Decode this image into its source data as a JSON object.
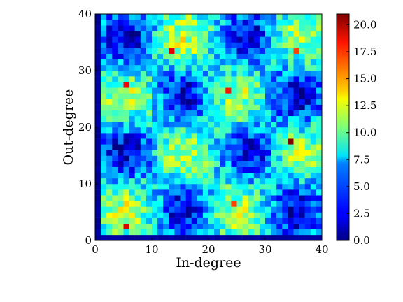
{
  "chart_data": {
    "type": "heatmap",
    "title": "",
    "xlabel": "In-degree",
    "ylabel": "Out-degree",
    "xlim": [
      0,
      40
    ],
    "ylim": [
      0,
      40
    ],
    "x_ticks": [
      "0",
      "10",
      "20",
      "30",
      "40"
    ],
    "y_ticks": [
      "0",
      "10",
      "20",
      "30",
      "40"
    ],
    "colormap": "jet",
    "colorbar": {
      "range": [
        0.0,
        21.0
      ],
      "ticks": [
        "0.0",
        "2.5",
        "5.0",
        "7.5",
        "10.0",
        "12.5",
        "15.0",
        "17.5",
        "20.0"
      ]
    },
    "grid": false,
    "description_of_cells": "40x40 grid of counts; low (blue, 0–4) blocks centered near (5,35),(27,35),(15,25),(35,25),(5,15),(27,15),(15,5),(35,5); higher (green–red, 8–21) blocks near (15,35),(35,35),(5,25),(25,25),(15,15),(35,15),(5,5),(25,5); column 0 and row 0 are ~0.",
    "highlights": [
      {
        "x": 34,
        "y": 17,
        "value": 21
      },
      {
        "x": 13,
        "y": 33,
        "value": 19
      },
      {
        "x": 5,
        "y": 27,
        "value": 18.5
      },
      {
        "x": 5,
        "y": 2,
        "value": 19
      },
      {
        "x": 23,
        "y": 26,
        "value": 18
      },
      {
        "x": 24,
        "y": 6,
        "value": 17
      },
      {
        "x": 35,
        "y": 33,
        "value": 17
      }
    ]
  }
}
